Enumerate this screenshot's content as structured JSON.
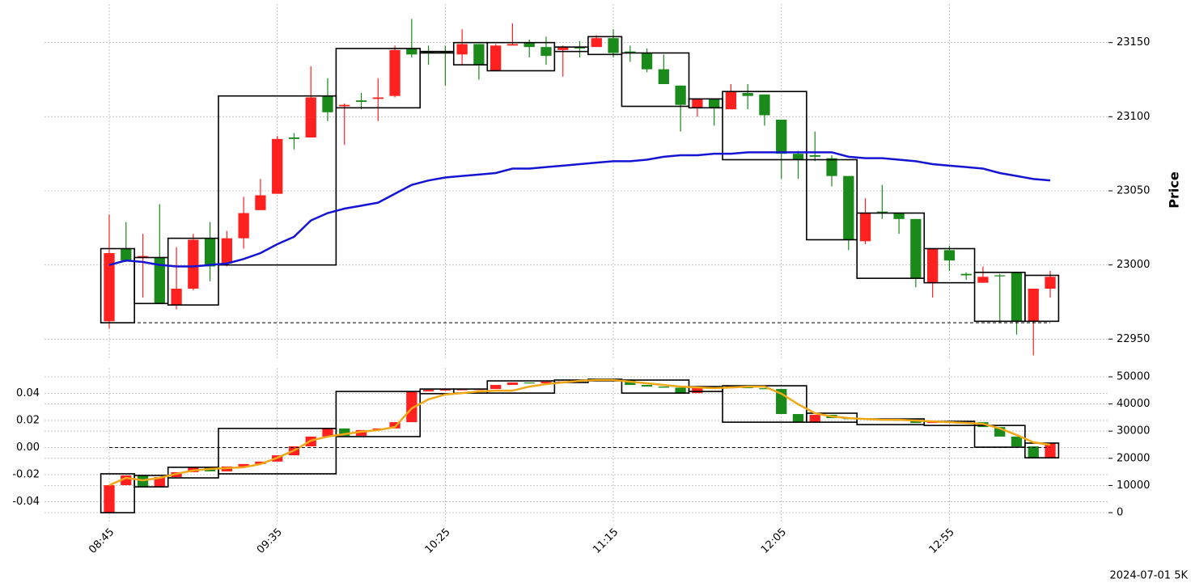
{
  "chart_data": [
    {
      "type": "candlestick",
      "ylabel": "Price",
      "up_color": "#ff2020",
      "down_color": "#1a8a1a",
      "grid": true,
      "ylim": [
        22936,
        23176
      ],
      "yticks": [
        22950,
        23000,
        23050,
        23100,
        23150
      ],
      "open": [
        22962,
        23011,
        23005,
        23005,
        22973,
        22984,
        23018,
        23001,
        23018,
        23037,
        23048,
        23086,
        23086,
        23114,
        23107,
        23111,
        23112,
        23114,
        23146,
        23144,
        23144,
        23142,
        23149,
        23131,
        23148,
        23150,
        23147,
        23145,
        23147,
        23147,
        23153,
        23144,
        23143,
        23132,
        23121,
        23106,
        23112,
        23105,
        23116,
        23115,
        23098,
        23075,
        23074,
        23072,
        23060,
        23016,
        23036,
        23035,
        23031,
        22988,
        23010,
        22994,
        22988,
        22993,
        22995,
        22962,
        22984
      ],
      "high": [
        23034,
        23029,
        23021,
        23041,
        23012,
        23021,
        23029,
        23023,
        23046,
        23058,
        23087,
        23089,
        23134,
        23126,
        23109,
        23116,
        23126,
        23148,
        23166,
        23148,
        23148,
        23159,
        23149,
        23149,
        23163,
        23152,
        23154,
        23148,
        23151,
        23155,
        23159,
        23148,
        23146,
        23142,
        23121,
        23112,
        23112,
        23122,
        23122,
        23115,
        23098,
        23077,
        23090,
        23074,
        23060,
        23045,
        23054,
        23035,
        23031,
        23011,
        23013,
        22995,
        22999,
        22994,
        22995,
        22984,
        22996
      ],
      "low": [
        22957,
        23002,
        22978,
        22974,
        22970,
        22983,
        22989,
        22999,
        23011,
        23037,
        23048,
        23078,
        23086,
        23097,
        23081,
        23105,
        23097,
        23113,
        23140,
        23135,
        23121,
        23135,
        23125,
        23131,
        23148,
        23140,
        23135,
        23127,
        23140,
        23147,
        23140,
        23137,
        23130,
        23122,
        23090,
        23100,
        23094,
        23105,
        23105,
        23094,
        23058,
        23058,
        23070,
        23053,
        23010,
        23014,
        23031,
        23021,
        22985,
        22978,
        22996,
        22990,
        22988,
        22961,
        22953,
        22939,
        22978
      ],
      "close": [
        23008,
        23003,
        23006,
        22974,
        22984,
        23017,
        22999,
        23018,
        23035,
        23047,
        23085,
        23085,
        23113,
        23103,
        23108,
        23110,
        23113,
        23145,
        23142,
        23143,
        23143,
        23149,
        23135,
        23148,
        23149,
        23147,
        23141,
        23147,
        23146,
        23153,
        23143,
        23143,
        23132,
        23122,
        23108,
        23112,
        23106,
        23117,
        23114,
        23101,
        23075,
        23071,
        23073,
        23060,
        23017,
        23035,
        23035,
        23031,
        22991,
        23011,
        23003,
        22993,
        22992,
        22993,
        22962,
        22984,
        22992
      ],
      "line": {
        "color": "#1414d2",
        "values": [
          23000,
          23003,
          23002,
          23000,
          22999,
          22999,
          23000,
          23001,
          23004,
          23008,
          23014,
          23019,
          23030,
          23035,
          23038,
          23040,
          23042,
          23048,
          23054,
          23057,
          23059,
          23060,
          23061,
          23062,
          23065,
          23065,
          23066,
          23067,
          23068,
          23069,
          23070,
          23070,
          23071,
          23073,
          23074,
          23074,
          23075,
          23075,
          23076,
          23076,
          23076,
          23076,
          23076,
          23076,
          23073,
          23072,
          23072,
          23071,
          23070,
          23068,
          23067,
          23066,
          23065,
          23062,
          23060,
          23058,
          23057
        ]
      },
      "boxes": [
        {
          "start": 0,
          "end": 1,
          "low": 22961,
          "high": 23011
        },
        {
          "start": 2,
          "end": 3,
          "low": 22974,
          "high": 23005
        },
        {
          "start": 4,
          "end": 6,
          "low": 22973,
          "high": 23018
        },
        {
          "start": 7,
          "end": 13,
          "low": 23000,
          "high": 23114
        },
        {
          "start": 14,
          "end": 18,
          "low": 23106,
          "high": 23146
        },
        {
          "start": 19,
          "end": 20,
          "low": 23143,
          "high": 23144
        },
        {
          "start": 21,
          "end": 22,
          "low": 23135,
          "high": 23150
        },
        {
          "start": 23,
          "end": 26,
          "low": 23131,
          "high": 23150
        },
        {
          "start": 27,
          "end": 28,
          "low": 23144,
          "high": 23147
        },
        {
          "start": 29,
          "end": 30,
          "low": 23142,
          "high": 23154
        },
        {
          "start": 31,
          "end": 34,
          "low": 23107,
          "high": 23143
        },
        {
          "start": 35,
          "end": 36,
          "low": 23106,
          "high": 23112
        },
        {
          "start": 37,
          "end": 41,
          "low": 23071,
          "high": 23117
        },
        {
          "start": 42,
          "end": 44,
          "low": 23017,
          "high": 23071
        },
        {
          "start": 45,
          "end": 48,
          "low": 22991,
          "high": 23035
        },
        {
          "start": 49,
          "end": 51,
          "low": 22988,
          "high": 23011
        },
        {
          "start": 52,
          "end": 54,
          "low": 22962,
          "high": 22995
        },
        {
          "start": 55,
          "end": 56,
          "low": 22962,
          "high": 22993
        }
      ],
      "hline": {
        "value": 22961
      }
    },
    {
      "type": "candlestick",
      "up_color": "#ff2020",
      "down_color": "#1a8a1a",
      "grid": true,
      "categories": [
        "08:45",
        null,
        null,
        null,
        null,
        null,
        null,
        null,
        null,
        null,
        "09:35",
        null,
        null,
        null,
        null,
        null,
        null,
        null,
        null,
        null,
        "10:25",
        null,
        null,
        null,
        null,
        null,
        null,
        null,
        null,
        null,
        "11:15",
        null,
        null,
        null,
        null,
        null,
        null,
        null,
        null,
        null,
        "12:05",
        null,
        null,
        null,
        null,
        null,
        null,
        null,
        null,
        null,
        "12:55",
        null,
        null,
        null,
        null,
        null,
        null
      ],
      "ylim": [
        -3270,
        53270
      ],
      "yticks": [
        0,
        10000,
        20000,
        30000,
        40000,
        50000
      ],
      "y2lim": [
        -0.0546,
        0.0588
      ],
      "y2ticks": [
        -0.04,
        -0.02,
        {
          "value": 0,
          "label": "0.00"
        },
        0.02,
        0.04
      ],
      "open": [
        0,
        10100,
        13700,
        9500,
        13100,
        14900,
        16700,
        15200,
        17000,
        17900,
        18800,
        21100,
        24400,
        28000,
        31000,
        28300,
        30400,
        31000,
        33300,
        44600,
        45200,
        45300,
        45400,
        45500,
        47000,
        47900,
        47600,
        48200,
        48300,
        48800,
        48800,
        48700,
        47000,
        46400,
        46000,
        44000,
        46100,
        45800,
        46700,
        45800,
        45500,
        36300,
        33300,
        36000,
        34800,
        34400,
        34600,
        34200,
        33800,
        33000,
        33500,
        33000,
        33300,
        31500,
        28000,
        24400,
        20200
      ],
      "close": [
        10100,
        13700,
        9500,
        13100,
        14900,
        16700,
        15200,
        17000,
        17900,
        18800,
        21100,
        24400,
        28000,
        31000,
        28300,
        30400,
        31000,
        33300,
        44600,
        45200,
        45300,
        45400,
        45500,
        47000,
        47900,
        47600,
        48200,
        48300,
        48800,
        48800,
        48700,
        47000,
        46400,
        46000,
        44000,
        46100,
        45800,
        46700,
        45800,
        45500,
        36300,
        33300,
        36000,
        34800,
        34400,
        34600,
        34200,
        33800,
        33000,
        33500,
        33000,
        33300,
        31500,
        28000,
        24400,
        20200,
        25600
      ],
      "line": {
        "color": "#f0a818",
        "values": [
          10100,
          12800,
          11900,
          12800,
          14300,
          15500,
          16100,
          16400,
          16700,
          17900,
          20200,
          22900,
          26500,
          28000,
          28900,
          29800,
          30400,
          31500,
          38400,
          41700,
          43500,
          44000,
          44600,
          44900,
          44900,
          46400,
          47300,
          47900,
          48500,
          48800,
          48800,
          48200,
          47600,
          47000,
          46400,
          46100,
          45800,
          46100,
          46400,
          46400,
          43800,
          39900,
          36600,
          35400,
          34800,
          34500,
          34200,
          34200,
          33900,
          33600,
          33300,
          33000,
          32700,
          31000,
          28600,
          25900,
          25000
        ]
      },
      "boxes": [
        {
          "start": 0,
          "end": 1,
          "low": 0,
          "high": 14300
        },
        {
          "start": 2,
          "end": 3,
          "low": 9500,
          "high": 13700
        },
        {
          "start": 4,
          "end": 6,
          "low": 12800,
          "high": 16700
        },
        {
          "start": 7,
          "end": 13,
          "low": 14300,
          "high": 31000
        },
        {
          "start": 14,
          "end": 18,
          "low": 28000,
          "high": 44600
        },
        {
          "start": 19,
          "end": 20,
          "low": 43800,
          "high": 45500
        },
        {
          "start": 21,
          "end": 22,
          "low": 44000,
          "high": 45500
        },
        {
          "start": 23,
          "end": 26,
          "low": 44000,
          "high": 48500
        },
        {
          "start": 27,
          "end": 28,
          "low": 47900,
          "high": 48800
        },
        {
          "start": 29,
          "end": 30,
          "low": 48500,
          "high": 49100
        },
        {
          "start": 31,
          "end": 34,
          "low": 44000,
          "high": 48800
        },
        {
          "start": 35,
          "end": 36,
          "low": 44600,
          "high": 46400
        },
        {
          "start": 37,
          "end": 41,
          "low": 33300,
          "high": 46700
        },
        {
          "start": 42,
          "end": 44,
          "low": 33300,
          "high": 36600
        },
        {
          "start": 45,
          "end": 48,
          "low": 32400,
          "high": 34500
        },
        {
          "start": 49,
          "end": 51,
          "low": 32100,
          "high": 33600
        },
        {
          "start": 52,
          "end": 54,
          "low": 24100,
          "high": 32100
        },
        {
          "start": 55,
          "end": 56,
          "low": 20200,
          "high": 25600
        }
      ],
      "hline": {
        "value": 0,
        "axis": "y2"
      }
    }
  ],
  "footnote": "2024-07-01 5K"
}
